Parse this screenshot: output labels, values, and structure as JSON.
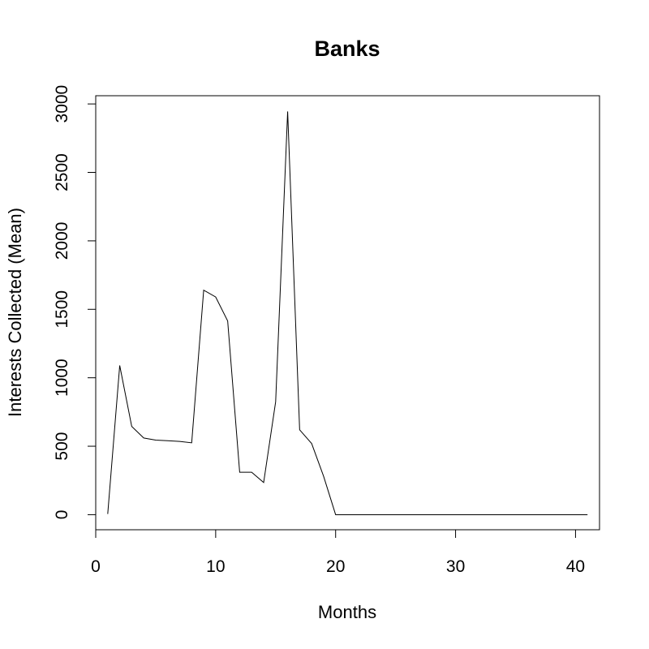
{
  "chart_data": {
    "type": "line",
    "title": "Banks",
    "xlabel": "Months",
    "ylabel": "Interests Collected (Mean)",
    "xlim": [
      0,
      42
    ],
    "ylim": [
      -110,
      3060
    ],
    "x_ticks": [
      0,
      10,
      20,
      30,
      40
    ],
    "y_ticks": [
      0,
      500,
      1000,
      1500,
      2000,
      2500,
      3000
    ],
    "grid": false,
    "series": [
      {
        "x": [
          1,
          2,
          3,
          4,
          5,
          6,
          7,
          8,
          9,
          10,
          11,
          12,
          13,
          14,
          15,
          16,
          17,
          18,
          19,
          20,
          21,
          22,
          23,
          24,
          25,
          26,
          27,
          28,
          29,
          30,
          31,
          32,
          33,
          34,
          35,
          36,
          37,
          38,
          39,
          40,
          41
        ],
        "values": [
          5,
          1090,
          645,
          560,
          545,
          540,
          535,
          525,
          1640,
          1590,
          1415,
          310,
          310,
          235,
          825,
          2945,
          620,
          520,
          280,
          0,
          0,
          0,
          0,
          0,
          0,
          0,
          0,
          0,
          0,
          0,
          0,
          0,
          0,
          0,
          0,
          0,
          0,
          0,
          0,
          0,
          0
        ]
      }
    ]
  }
}
